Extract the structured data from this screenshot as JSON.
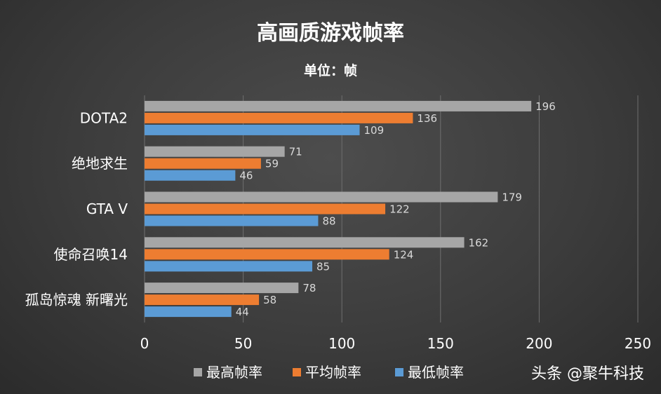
{
  "chart_data": {
    "type": "bar",
    "orientation": "horizontal",
    "title": "高画质游戏帧率",
    "subtitle": "单位：帧",
    "categories": [
      "DOTA2",
      "绝地求生",
      "GTA V",
      "使命召唤14",
      "孤岛惊魂 新曙光"
    ],
    "series": [
      {
        "name": "最高帧率",
        "color": "#a6a6a6",
        "values": [
          196,
          71,
          179,
          162,
          78
        ]
      },
      {
        "name": "平均帧率",
        "color": "#ed7d31",
        "values": [
          136,
          59,
          122,
          124,
          58
        ]
      },
      {
        "name": "最低帧率",
        "color": "#5b9bd5",
        "values": [
          109,
          46,
          88,
          85,
          44
        ]
      }
    ],
    "xlim": [
      0,
      250
    ],
    "xticks": [
      "0",
      "50",
      "100",
      "150",
      "200",
      "250"
    ],
    "grid": true,
    "legend": "bottom"
  },
  "watermark": "头条 @聚牛科技"
}
